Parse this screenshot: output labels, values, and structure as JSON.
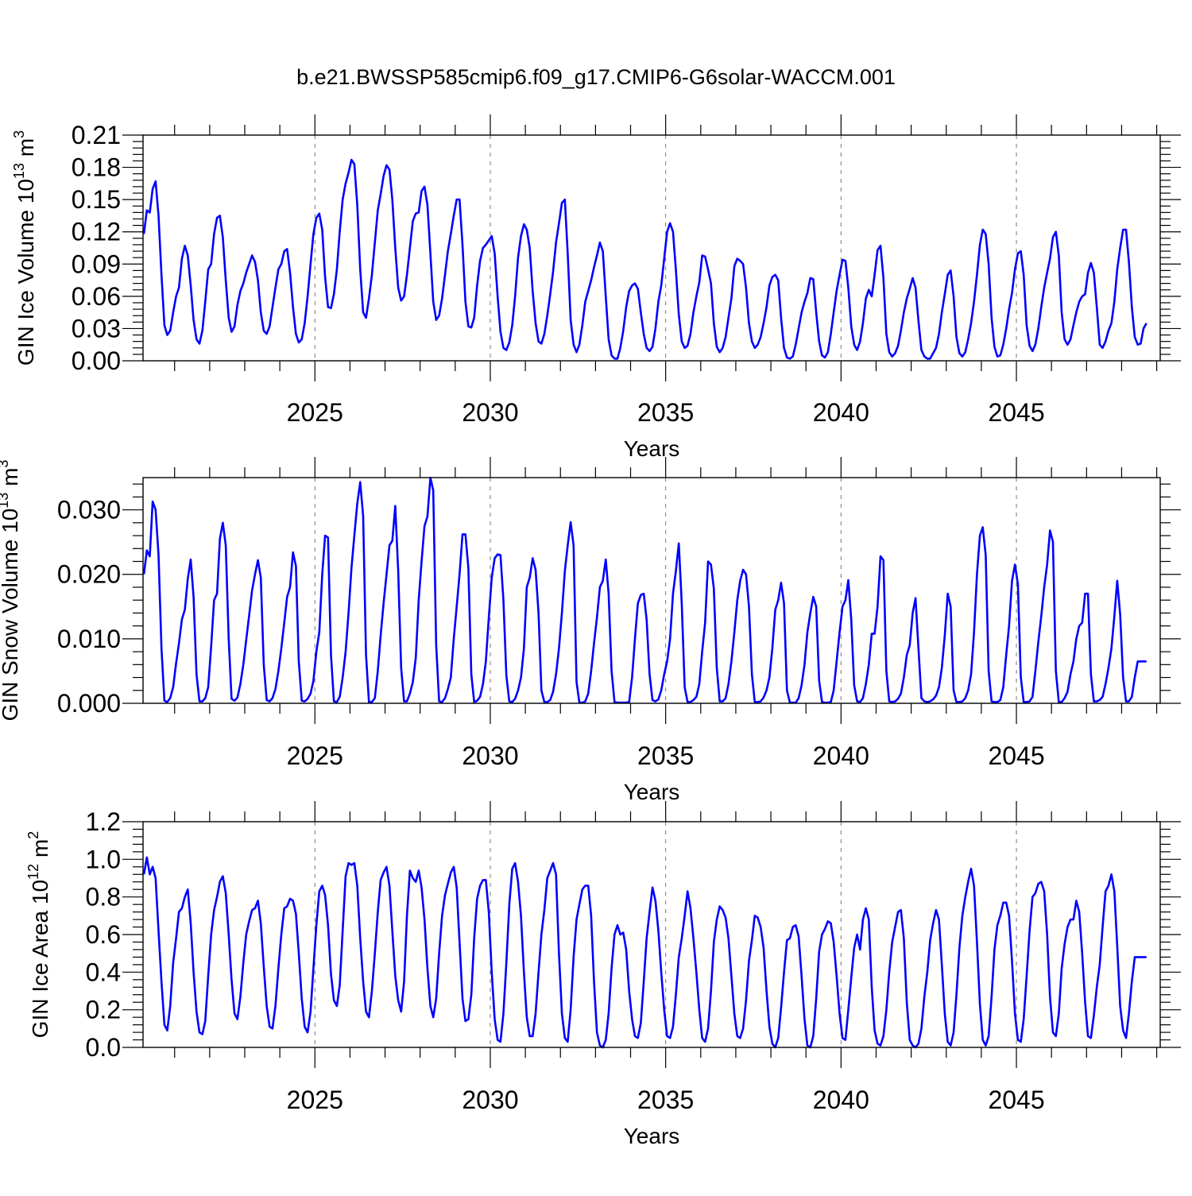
{
  "figure": {
    "title": "b.e21.BWSSP585cmip6.f09_g17.CMIP6-G6solar-WACCM.001",
    "line_color": "#0000ff",
    "grid_color": "#777777"
  },
  "chart_data": [
    {
      "id": "ice-volume",
      "type": "line",
      "title": "",
      "xlabel": "Years",
      "ylabel": {
        "main": "GIN Ice Volume 10",
        "sup": "13",
        "unit": " m",
        "unit_sup": "3"
      },
      "xlim": [
        2020.1,
        2049.1
      ],
      "ylim": [
        0.0,
        0.21
      ],
      "x_start": 2020.125,
      "x_step": 0.0833333,
      "xticks": [
        2025,
        2030,
        2035,
        2040,
        2045
      ],
      "xtick_labels": [
        "2025",
        "2030",
        "2035",
        "2040",
        "2045"
      ],
      "yticks": [
        0,
        0.03,
        0.06,
        0.09,
        0.12,
        0.15,
        0.18,
        0.21
      ],
      "ytick_labels": [
        "0.00",
        "0.03",
        "0.06",
        "0.09",
        "0.12",
        "0.15",
        "0.18",
        "0.21"
      ],
      "grid": "dashed vertical at major x ticks",
      "values": [
        0.118,
        0.14,
        0.138,
        0.16,
        0.167,
        0.135,
        0.08,
        0.033,
        0.024,
        0.028,
        0.045,
        0.06,
        0.068,
        0.095,
        0.107,
        0.098,
        0.07,
        0.038,
        0.02,
        0.016,
        0.028,
        0.055,
        0.085,
        0.09,
        0.118,
        0.133,
        0.135,
        0.115,
        0.075,
        0.04,
        0.027,
        0.032,
        0.052,
        0.065,
        0.072,
        0.082,
        0.09,
        0.098,
        0.092,
        0.075,
        0.045,
        0.028,
        0.025,
        0.032,
        0.05,
        0.068,
        0.085,
        0.09,
        0.102,
        0.104,
        0.082,
        0.05,
        0.025,
        0.017,
        0.02,
        0.035,
        0.06,
        0.09,
        0.118,
        0.133,
        0.137,
        0.122,
        0.078,
        0.05,
        0.049,
        0.062,
        0.085,
        0.12,
        0.15,
        0.165,
        0.175,
        0.187,
        0.183,
        0.145,
        0.085,
        0.045,
        0.04,
        0.058,
        0.08,
        0.11,
        0.14,
        0.155,
        0.172,
        0.182,
        0.178,
        0.15,
        0.105,
        0.068,
        0.056,
        0.06,
        0.08,
        0.105,
        0.13,
        0.137,
        0.138,
        0.158,
        0.162,
        0.145,
        0.1,
        0.055,
        0.038,
        0.042,
        0.058,
        0.08,
        0.102,
        0.118,
        0.135,
        0.15,
        0.15,
        0.108,
        0.055,
        0.032,
        0.031,
        0.04,
        0.07,
        0.093,
        0.105,
        0.108,
        0.112,
        0.116,
        0.1,
        0.06,
        0.027,
        0.012,
        0.01,
        0.017,
        0.033,
        0.06,
        0.096,
        0.116,
        0.127,
        0.122,
        0.105,
        0.065,
        0.035,
        0.018,
        0.016,
        0.025,
        0.042,
        0.062,
        0.083,
        0.11,
        0.128,
        0.147,
        0.15,
        0.1,
        0.038,
        0.015,
        0.008,
        0.015,
        0.033,
        0.055,
        0.065,
        0.075,
        0.087,
        0.098,
        0.11,
        0.102,
        0.06,
        0.02,
        0.005,
        0.002,
        0.002,
        0.012,
        0.028,
        0.05,
        0.065,
        0.07,
        0.072,
        0.067,
        0.045,
        0.025,
        0.012,
        0.009,
        0.013,
        0.03,
        0.055,
        0.07,
        0.095,
        0.12,
        0.128,
        0.12,
        0.085,
        0.043,
        0.018,
        0.012,
        0.014,
        0.025,
        0.045,
        0.06,
        0.073,
        0.098,
        0.097,
        0.085,
        0.072,
        0.035,
        0.013,
        0.008,
        0.012,
        0.022,
        0.04,
        0.058,
        0.088,
        0.095,
        0.093,
        0.09,
        0.068,
        0.035,
        0.018,
        0.012,
        0.015,
        0.022,
        0.035,
        0.05,
        0.07,
        0.078,
        0.08,
        0.075,
        0.04,
        0.012,
        0.003,
        0.002,
        0.004,
        0.015,
        0.03,
        0.045,
        0.055,
        0.063,
        0.077,
        0.076,
        0.045,
        0.018,
        0.005,
        0.003,
        0.008,
        0.025,
        0.045,
        0.065,
        0.08,
        0.094,
        0.093,
        0.068,
        0.032,
        0.015,
        0.01,
        0.018,
        0.035,
        0.058,
        0.066,
        0.06,
        0.08,
        0.103,
        0.107,
        0.077,
        0.025,
        0.008,
        0.004,
        0.007,
        0.014,
        0.028,
        0.045,
        0.058,
        0.067,
        0.077,
        0.068,
        0.037,
        0.01,
        0.004,
        0.002,
        0.002,
        0.007,
        0.012,
        0.025,
        0.045,
        0.062,
        0.08,
        0.084,
        0.06,
        0.022,
        0.007,
        0.004,
        0.008,
        0.02,
        0.035,
        0.055,
        0.08,
        0.108,
        0.122,
        0.118,
        0.09,
        0.04,
        0.013,
        0.004,
        0.005,
        0.015,
        0.03,
        0.048,
        0.063,
        0.085,
        0.1,
        0.102,
        0.08,
        0.033,
        0.014,
        0.009,
        0.015,
        0.03,
        0.05,
        0.068,
        0.082,
        0.095,
        0.115,
        0.12,
        0.098,
        0.045,
        0.02,
        0.015,
        0.02,
        0.033,
        0.045,
        0.055,
        0.06,
        0.062,
        0.082,
        0.091,
        0.082,
        0.05,
        0.015,
        0.012,
        0.018,
        0.028,
        0.035,
        0.055,
        0.085,
        0.105,
        0.122,
        0.122,
        0.092,
        0.05,
        0.022,
        0.015,
        0.016,
        0.03,
        0.035
      ]
    },
    {
      "id": "snow-volume",
      "type": "line",
      "title": "",
      "xlabel": "Years",
      "ylabel": {
        "main": "GIN Snow Volume 10",
        "sup": "13",
        "unit": " m",
        "unit_sup": "3"
      },
      "xlim": [
        2020.1,
        2049.1
      ],
      "ylim": [
        0.0,
        0.035
      ],
      "x_start": 2020.125,
      "x_step": 0.0833333,
      "xticks": [
        2025,
        2030,
        2035,
        2040,
        2045
      ],
      "xtick_labels": [
        "2025",
        "2030",
        "2035",
        "2040",
        "2045"
      ],
      "yticks": [
        0,
        0.01,
        0.02,
        0.03
      ],
      "ytick_labels": [
        "0.000",
        "0.010",
        "0.020",
        "0.030"
      ],
      "grid": "dashed vertical at major x ticks",
      "values": [
        0.02,
        0.0237,
        0.0228,
        0.0313,
        0.03,
        0.023,
        0.0085,
        0.0004,
        0.0002,
        0.0008,
        0.0025,
        0.0062,
        0.0093,
        0.013,
        0.0145,
        0.0193,
        0.0223,
        0.0165,
        0.0045,
        0.0003,
        0.0003,
        0.0008,
        0.0025,
        0.0088,
        0.016,
        0.017,
        0.0255,
        0.028,
        0.0245,
        0.01,
        0.0007,
        0.0004,
        0.0009,
        0.003,
        0.006,
        0.0098,
        0.0136,
        0.0175,
        0.02,
        0.0222,
        0.0195,
        0.006,
        0.0005,
        0.0003,
        0.0008,
        0.0022,
        0.005,
        0.0085,
        0.0125,
        0.0165,
        0.018,
        0.0234,
        0.0213,
        0.0065,
        0.0004,
        0.0003,
        0.0007,
        0.0015,
        0.0035,
        0.008,
        0.011,
        0.02,
        0.026,
        0.0257,
        0.0075,
        0.0003,
        0.0002,
        0.001,
        0.004,
        0.008,
        0.014,
        0.021,
        0.026,
        0.031,
        0.0343,
        0.029,
        0.0075,
        0.0002,
        0.0002,
        0.0008,
        0.005,
        0.0105,
        0.0155,
        0.02,
        0.0245,
        0.0252,
        0.0306,
        0.0205,
        0.0055,
        0.0003,
        0.0003,
        0.0015,
        0.0033,
        0.007,
        0.016,
        0.022,
        0.0275,
        0.029,
        0.035,
        0.033,
        0.009,
        0.0003,
        0.0002,
        0.0008,
        0.0022,
        0.004,
        0.01,
        0.015,
        0.02,
        0.0262,
        0.0262,
        0.021,
        0.0045,
        0.0002,
        0.0004,
        0.001,
        0.003,
        0.0065,
        0.0133,
        0.0195,
        0.0225,
        0.0231,
        0.023,
        0.016,
        0.0043,
        0.0003,
        0.0002,
        0.0007,
        0.002,
        0.004,
        0.0085,
        0.018,
        0.0195,
        0.0225,
        0.0207,
        0.014,
        0.002,
        0.0002,
        0.0002,
        0.0005,
        0.0018,
        0.0045,
        0.0085,
        0.014,
        0.0205,
        0.0245,
        0.0281,
        0.0245,
        0.0033,
        0.0001,
        0.0001,
        0.0003,
        0.0015,
        0.005,
        0.0093,
        0.0133,
        0.018,
        0.019,
        0.0223,
        0.017,
        0.005,
        0.0002,
        0.0001,
        0.0001,
        0.0001,
        0.0001,
        0.0002,
        0.004,
        0.01,
        0.0155,
        0.0168,
        0.017,
        0.013,
        0.0045,
        0.0005,
        0.0003,
        0.0006,
        0.002,
        0.0045,
        0.0065,
        0.01,
        0.017,
        0.0205,
        0.0248,
        0.0155,
        0.0025,
        0.0002,
        0.0002,
        0.0005,
        0.001,
        0.003,
        0.008,
        0.0125,
        0.022,
        0.0215,
        0.0178,
        0.0055,
        0.0003,
        0.0003,
        0.0008,
        0.003,
        0.0065,
        0.011,
        0.016,
        0.019,
        0.0207,
        0.02,
        0.015,
        0.0045,
        0.0002,
        0.0002,
        0.0003,
        0.0009,
        0.002,
        0.004,
        0.0085,
        0.0145,
        0.016,
        0.0187,
        0.0155,
        0.002,
        0.0001,
        0.0001,
        0.0001,
        0.0008,
        0.0028,
        0.006,
        0.011,
        0.014,
        0.0165,
        0.015,
        0.0035,
        0.0002,
        0.0001,
        0.0001,
        0.0002,
        0.002,
        0.0065,
        0.011,
        0.015,
        0.016,
        0.0191,
        0.013,
        0.0028,
        0.0003,
        0.0002,
        0.0008,
        0.003,
        0.006,
        0.0108,
        0.0108,
        0.015,
        0.0228,
        0.0222,
        0.005,
        0.0003,
        0.0002,
        0.0003,
        0.0007,
        0.0015,
        0.004,
        0.0075,
        0.009,
        0.014,
        0.0163,
        0.0085,
        0.0008,
        0.0003,
        0.0002,
        0.0003,
        0.0006,
        0.0012,
        0.0025,
        0.0055,
        0.0105,
        0.017,
        0.015,
        0.002,
        0.0002,
        0.0002,
        0.0003,
        0.0008,
        0.002,
        0.0045,
        0.011,
        0.02,
        0.026,
        0.0273,
        0.023,
        0.005,
        0.0003,
        0.0002,
        0.0002,
        0.0005,
        0.0025,
        0.0075,
        0.012,
        0.019,
        0.0215,
        0.0185,
        0.004,
        0.0002,
        0.0002,
        0.0003,
        0.001,
        0.005,
        0.0095,
        0.0135,
        0.018,
        0.0215,
        0.0268,
        0.025,
        0.005,
        0.0002,
        0.0002,
        0.0008,
        0.0018,
        0.0045,
        0.0065,
        0.01,
        0.012,
        0.0125,
        0.017,
        0.017,
        0.0045,
        0.0003,
        0.0003,
        0.0005,
        0.001,
        0.003,
        0.0055,
        0.0085,
        0.0135,
        0.019,
        0.0138,
        0.004,
        0.0003,
        0.0003,
        0.001,
        0.004,
        0.0065,
        0.0065,
        0.0065,
        0.0065
      ]
    },
    {
      "id": "ice-area",
      "type": "line",
      "title": "",
      "xlabel": "Years",
      "ylabel": {
        "main": "GIN Ice Area 10",
        "sup": "12",
        "unit": " m",
        "unit_sup": "2"
      },
      "xlim": [
        2020.1,
        2049.1
      ],
      "ylim": [
        0.0,
        1.2
      ],
      "x_start": 2020.125,
      "x_step": 0.0833333,
      "xticks": [
        2025,
        2030,
        2035,
        2040,
        2045
      ],
      "xtick_labels": [
        "2025",
        "2030",
        "2035",
        "2040",
        "2045"
      ],
      "yticks": [
        0,
        0.2,
        0.4,
        0.6,
        0.8,
        1.0,
        1.2
      ],
      "ytick_labels": [
        "0.0",
        "0.2",
        "0.4",
        "0.6",
        "0.8",
        "1.0",
        "1.2"
      ],
      "grid": "dashed vertical at major x ticks",
      "values": [
        0.92,
        1.01,
        0.92,
        0.96,
        0.9,
        0.62,
        0.35,
        0.12,
        0.09,
        0.22,
        0.45,
        0.58,
        0.72,
        0.74,
        0.8,
        0.84,
        0.66,
        0.4,
        0.19,
        0.08,
        0.07,
        0.14,
        0.38,
        0.6,
        0.73,
        0.8,
        0.88,
        0.91,
        0.82,
        0.6,
        0.36,
        0.18,
        0.15,
        0.27,
        0.45,
        0.6,
        0.67,
        0.73,
        0.74,
        0.78,
        0.66,
        0.43,
        0.22,
        0.11,
        0.1,
        0.22,
        0.42,
        0.6,
        0.74,
        0.75,
        0.79,
        0.78,
        0.71,
        0.5,
        0.26,
        0.11,
        0.08,
        0.19,
        0.42,
        0.65,
        0.83,
        0.86,
        0.81,
        0.65,
        0.39,
        0.25,
        0.22,
        0.33,
        0.62,
        0.91,
        0.98,
        0.97,
        0.98,
        0.86,
        0.58,
        0.35,
        0.19,
        0.16,
        0.3,
        0.5,
        0.72,
        0.89,
        0.93,
        0.96,
        0.86,
        0.62,
        0.38,
        0.25,
        0.19,
        0.35,
        0.7,
        0.94,
        0.9,
        0.88,
        0.94,
        0.85,
        0.68,
        0.42,
        0.22,
        0.16,
        0.26,
        0.5,
        0.7,
        0.81,
        0.87,
        0.93,
        0.96,
        0.85,
        0.56,
        0.26,
        0.14,
        0.15,
        0.28,
        0.58,
        0.79,
        0.86,
        0.89,
        0.89,
        0.72,
        0.4,
        0.15,
        0.04,
        0.03,
        0.18,
        0.45,
        0.76,
        0.95,
        0.98,
        0.88,
        0.7,
        0.4,
        0.16,
        0.06,
        0.06,
        0.18,
        0.4,
        0.6,
        0.73,
        0.9,
        0.94,
        0.98,
        0.92,
        0.5,
        0.18,
        0.05,
        0.03,
        0.2,
        0.48,
        0.68,
        0.76,
        0.84,
        0.86,
        0.86,
        0.7,
        0.35,
        0.08,
        0.01,
        0.0,
        0.04,
        0.18,
        0.42,
        0.6,
        0.65,
        0.6,
        0.61,
        0.52,
        0.3,
        0.15,
        0.06,
        0.05,
        0.13,
        0.35,
        0.58,
        0.72,
        0.85,
        0.78,
        0.62,
        0.4,
        0.2,
        0.06,
        0.05,
        0.11,
        0.28,
        0.48,
        0.58,
        0.7,
        0.83,
        0.74,
        0.58,
        0.4,
        0.2,
        0.05,
        0.03,
        0.1,
        0.3,
        0.56,
        0.68,
        0.75,
        0.73,
        0.69,
        0.58,
        0.38,
        0.18,
        0.06,
        0.05,
        0.1,
        0.25,
        0.46,
        0.57,
        0.7,
        0.69,
        0.64,
        0.53,
        0.3,
        0.11,
        0.02,
        0.0,
        0.05,
        0.21,
        0.4,
        0.57,
        0.58,
        0.64,
        0.65,
        0.59,
        0.38,
        0.15,
        0.01,
        0.0,
        0.06,
        0.26,
        0.51,
        0.6,
        0.63,
        0.67,
        0.66,
        0.56,
        0.38,
        0.18,
        0.05,
        0.04,
        0.2,
        0.37,
        0.53,
        0.6,
        0.52,
        0.68,
        0.74,
        0.68,
        0.32,
        0.09,
        0.02,
        0.01,
        0.06,
        0.2,
        0.4,
        0.56,
        0.64,
        0.72,
        0.73,
        0.58,
        0.24,
        0.04,
        0.01,
        0.0,
        0.02,
        0.1,
        0.27,
        0.4,
        0.57,
        0.66,
        0.73,
        0.68,
        0.44,
        0.18,
        0.03,
        0.01,
        0.08,
        0.28,
        0.53,
        0.7,
        0.8,
        0.88,
        0.95,
        0.86,
        0.56,
        0.23,
        0.04,
        0.01,
        0.06,
        0.27,
        0.52,
        0.65,
        0.7,
        0.77,
        0.77,
        0.7,
        0.46,
        0.18,
        0.04,
        0.03,
        0.15,
        0.38,
        0.62,
        0.8,
        0.82,
        0.87,
        0.88,
        0.83,
        0.6,
        0.27,
        0.08,
        0.06,
        0.18,
        0.42,
        0.55,
        0.64,
        0.68,
        0.68,
        0.78,
        0.72,
        0.5,
        0.24,
        0.06,
        0.05,
        0.17,
        0.32,
        0.44,
        0.64,
        0.83,
        0.86,
        0.92,
        0.83,
        0.54,
        0.22,
        0.09,
        0.05,
        0.18,
        0.35,
        0.48,
        0.48,
        0.48,
        0.48,
        0.48
      ]
    }
  ]
}
